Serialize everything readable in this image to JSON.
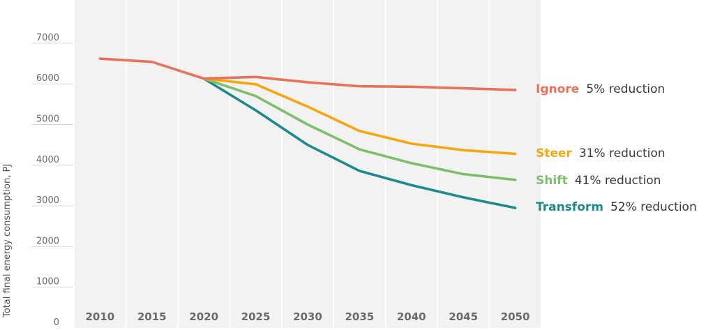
{
  "chart_data": {
    "type": "line",
    "title": "",
    "xlabel": "",
    "ylabel": "Total final energy consumption, PJ",
    "x": [
      "2010",
      "2015",
      "2020",
      "2025",
      "2030",
      "2035",
      "2040",
      "2045",
      "2050"
    ],
    "yticks": [
      "0",
      "1000",
      "2000",
      "3000",
      "4000",
      "5000",
      "6000",
      "7000"
    ],
    "ylim": [
      0,
      8000
    ],
    "grid": true,
    "legend": "direct labels at line ends",
    "series": [
      {
        "name": "Ignore",
        "note": "5% reduction",
        "color": "#e8735a",
        "values": [
          6620,
          6540,
          6130,
          6170,
          6040,
          5940,
          5930,
          5890,
          5850
        ]
      },
      {
        "name": "Steer",
        "note": "31% reduction",
        "color": "#f5a70f",
        "values": [
          null,
          null,
          6130,
          5990,
          5440,
          4840,
          4530,
          4370,
          4280
        ]
      },
      {
        "name": "Shift",
        "note": "41% reduction",
        "color": "#7fbf6a",
        "values": [
          null,
          null,
          6130,
          5700,
          5000,
          4390,
          4050,
          3780,
          3640
        ]
      },
      {
        "name": "Transform",
        "note": "52% reduction",
        "color": "#1d8a8c",
        "values": [
          null,
          null,
          6130,
          5350,
          4500,
          3860,
          3510,
          3210,
          2950
        ]
      }
    ]
  }
}
